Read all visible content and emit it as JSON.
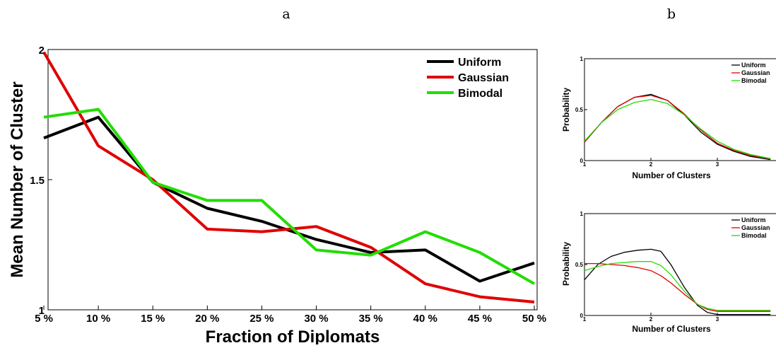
{
  "panel_labels": {
    "a": "a",
    "b": "b"
  },
  "chart_data": [
    {
      "type": "line",
      "panel": "a",
      "xlabel": "Fraction of Diplomats",
      "ylabel": "Mean Number of Cluster",
      "categories": [
        "5 %",
        "10 %",
        "15 %",
        "20 %",
        "25 %",
        "30 %",
        "35 %",
        "40 %",
        "45 %",
        "50 %"
      ],
      "yticks": [
        "1",
        "1.5",
        "2"
      ],
      "ylim": [
        1,
        2
      ],
      "legend_position": "top-right",
      "series": [
        {
          "name": "Uniform",
          "color": "#000000",
          "values": [
            1.66,
            1.74,
            1.49,
            1.39,
            1.34,
            1.27,
            1.22,
            1.23,
            1.11,
            1.18
          ]
        },
        {
          "name": "Gaussian",
          "color": "#e00000",
          "values": [
            1.99,
            1.63,
            1.5,
            1.31,
            1.3,
            1.32,
            1.24,
            1.1,
            1.05,
            1.03
          ]
        },
        {
          "name": "Bimodal",
          "color": "#22dd00",
          "values": [
            1.74,
            1.77,
            1.49,
            1.42,
            1.42,
            1.23,
            1.21,
            1.3,
            1.22,
            1.1
          ]
        }
      ]
    },
    {
      "type": "line",
      "panel": "b-top",
      "xlabel": "Number of Clusters",
      "ylabel": "Probability",
      "xticks": [
        "1",
        "2",
        "3"
      ],
      "yticks": [
        "0",
        "0.5",
        "1"
      ],
      "xlim": [
        1,
        3.8
      ],
      "ylim": [
        0,
        1
      ],
      "legend_position": "top-right",
      "series": [
        {
          "name": "Uniform",
          "color": "#000000",
          "x": [
            1,
            1.25,
            1.5,
            1.75,
            2,
            2.25,
            2.5,
            2.75,
            3,
            3.25,
            3.5,
            3.8
          ],
          "values": [
            0.18,
            0.37,
            0.53,
            0.62,
            0.65,
            0.59,
            0.45,
            0.28,
            0.16,
            0.09,
            0.04,
            0.01
          ]
        },
        {
          "name": "Gaussian",
          "color": "#e00000",
          "x": [
            1,
            1.25,
            1.5,
            1.75,
            2,
            2.25,
            2.5,
            2.75,
            3,
            3.25,
            3.5,
            3.8
          ],
          "values": [
            0.18,
            0.37,
            0.53,
            0.62,
            0.64,
            0.59,
            0.46,
            0.3,
            0.17,
            0.1,
            0.05,
            0.02
          ]
        },
        {
          "name": "Bimodal",
          "color": "#22dd00",
          "x": [
            1,
            1.25,
            1.5,
            1.75,
            2,
            2.25,
            2.5,
            2.75,
            3,
            3.25,
            3.5,
            3.8
          ],
          "values": [
            0.19,
            0.37,
            0.5,
            0.57,
            0.6,
            0.56,
            0.45,
            0.31,
            0.19,
            0.11,
            0.06,
            0.02
          ]
        }
      ]
    },
    {
      "type": "line",
      "panel": "b-bottom",
      "xlabel": "Number of Clusters",
      "ylabel": "Probability",
      "xticks": [
        "1",
        "2",
        "3"
      ],
      "yticks": [
        "0",
        "0.5",
        "1"
      ],
      "xlim": [
        1,
        3.8
      ],
      "ylim": [
        0,
        1
      ],
      "legend_position": "top-right",
      "series": [
        {
          "name": "Uniform",
          "color": "#000000",
          "x": [
            1,
            1.2,
            1.4,
            1.6,
            1.8,
            2,
            2.15,
            2.3,
            2.5,
            2.7,
            2.85,
            3,
            3.3,
            3.8
          ],
          "values": [
            0.35,
            0.5,
            0.58,
            0.62,
            0.64,
            0.65,
            0.63,
            0.5,
            0.28,
            0.1,
            0.03,
            0.01,
            0.01,
            0.01
          ]
        },
        {
          "name": "Gaussian",
          "color": "#e00000",
          "x": [
            1,
            1.2,
            1.4,
            1.6,
            1.8,
            2,
            2.15,
            2.3,
            2.5,
            2.7,
            2.85,
            3,
            3.3,
            3.8
          ],
          "values": [
            0.51,
            0.51,
            0.5,
            0.49,
            0.47,
            0.44,
            0.39,
            0.32,
            0.21,
            0.11,
            0.06,
            0.04,
            0.04,
            0.04
          ]
        },
        {
          "name": "Bimodal",
          "color": "#22dd00",
          "x": [
            1,
            1.2,
            1.4,
            1.6,
            1.8,
            2,
            2.15,
            2.3,
            2.5,
            2.7,
            2.85,
            3,
            3.3,
            3.8
          ],
          "values": [
            0.44,
            0.48,
            0.51,
            0.52,
            0.53,
            0.53,
            0.49,
            0.4,
            0.24,
            0.11,
            0.07,
            0.05,
            0.05,
            0.05
          ]
        }
      ]
    }
  ]
}
